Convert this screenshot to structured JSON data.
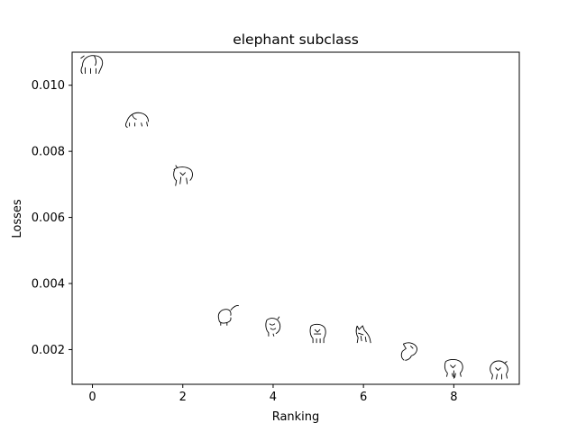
{
  "chart_data": {
    "type": "scatter",
    "title": "elephant subclass",
    "xlabel": "Ranking",
    "ylabel": "Losses",
    "xlim": [
      -0.45,
      9.45
    ],
    "ylim": [
      0.00095,
      0.011
    ],
    "xticks": [
      0,
      2,
      4,
      6,
      8
    ],
    "xtick_labels": [
      "0",
      "2",
      "4",
      "6",
      "8"
    ],
    "yticks": [
      0.002,
      0.004,
      0.006,
      0.008,
      0.01
    ],
    "ytick_labels": [
      "0.002",
      "0.004",
      "0.006",
      "0.008",
      "0.010"
    ],
    "marker": "elephant-sketch-image",
    "grid": false,
    "legend": false,
    "x": [
      0,
      1,
      2,
      3,
      4,
      5,
      6,
      7,
      8,
      9
    ],
    "y": [
      0.01065,
      0.009,
      0.00728,
      0.003,
      0.0027,
      0.0025,
      0.0025,
      0.00195,
      0.00145,
      0.0014
    ]
  }
}
